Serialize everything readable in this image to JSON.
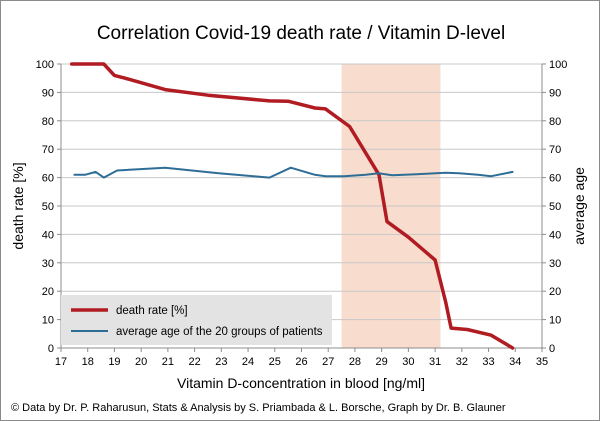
{
  "chart_data": {
    "type": "line",
    "title": "Correlation Covid-19 death rate / Vitamin D-level",
    "xlabel": "Vitamin D-concentration  in blood [ng/ml]",
    "ylabel_left": "death rate [%]",
    "ylabel_right": "average age",
    "xlim": [
      17,
      35
    ],
    "ylim_left": [
      0,
      100
    ],
    "ylim_right": [
      0,
      100
    ],
    "x_ticks": [
      17,
      18,
      19,
      20,
      21,
      22,
      23,
      24,
      25,
      26,
      27,
      28,
      29,
      30,
      31,
      32,
      33,
      34,
      35
    ],
    "y_ticks_left": [
      0,
      10,
      20,
      30,
      40,
      50,
      60,
      70,
      80,
      90,
      100
    ],
    "y_ticks_right": [
      0,
      10,
      20,
      30,
      40,
      50,
      60,
      70,
      80,
      90,
      100
    ],
    "grid": "horizontal",
    "legend_position": "bottom-left",
    "shaded_region": {
      "x": [
        27.5,
        31.2
      ],
      "color": "#f8dccd"
    },
    "series": [
      {
        "name": "death rate [%]",
        "axis": "left",
        "color": "#b01c22",
        "x": [
          17.4,
          18.1,
          18.6,
          19.0,
          19.4,
          20.9,
          22.5,
          24.8,
          25.5,
          26.5,
          26.9,
          27.8,
          28.9,
          29.2,
          30.0,
          31.0,
          31.4,
          31.6,
          32.2,
          33.1,
          33.9
        ],
        "y": [
          100,
          100,
          100,
          96,
          95,
          91,
          89,
          87,
          86.9,
          84.5,
          84.2,
          78,
          61,
          44.5,
          39,
          31,
          16,
          7,
          6.5,
          4.5,
          0
        ]
      },
      {
        "name": "average age of the 20 groups of patients",
        "axis": "right",
        "color": "#2e6e96",
        "x": [
          17.5,
          17.9,
          18.3,
          18.6,
          19.1,
          20.9,
          22.9,
          24.8,
          25.6,
          26.5,
          26.9,
          27.6,
          28.4,
          28.9,
          29.4,
          30.3,
          31.4,
          31.9,
          32.6,
          33.1,
          33.9
        ],
        "y": [
          61,
          61,
          62,
          60,
          62.5,
          63.5,
          61.5,
          60,
          63.5,
          61,
          60.5,
          60.5,
          61,
          61.5,
          60.8,
          61.2,
          61.7,
          61.5,
          61,
          60.5,
          62
        ]
      }
    ]
  },
  "credit": "© Data by Dr. P. Raharusun, Stats & Analysis by S. Priambada & L. Borsche, Graph by Dr. B. Glauner"
}
